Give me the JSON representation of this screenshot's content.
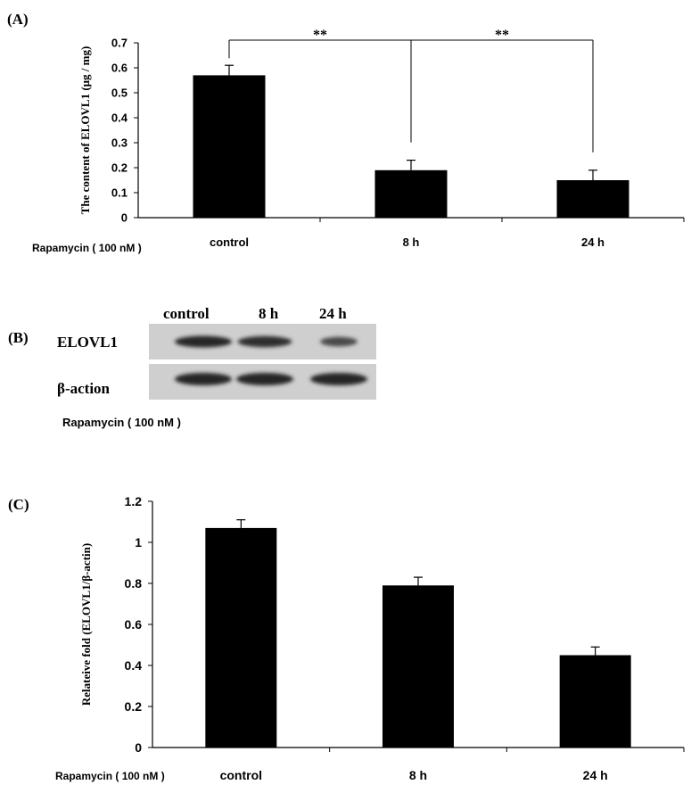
{
  "panel_labels": {
    "a": "(A)",
    "b": "(B)",
    "c": "(C)"
  },
  "treatment_label": "Rapamycin ( 100 nM )",
  "treatment_label_blot": "Rapamycin ( 100 nM )",
  "blot": {
    "lanes": [
      "control",
      "8 h",
      "24 h"
    ],
    "rows": [
      "ELOVL1",
      "β-action"
    ],
    "elovl1_intensity": [
      1.0,
      0.9,
      0.55
    ],
    "actin_intensity": [
      1.0,
      1.0,
      1.0
    ]
  },
  "chart_data": [
    {
      "type": "bar",
      "categories": [
        "control",
        "8 h",
        "24 h"
      ],
      "values": [
        0.57,
        0.19,
        0.15
      ],
      "errors": [
        0.04,
        0.04,
        0.04
      ],
      "ylabel": "The content of ELOVL1 (μg / mg)",
      "ylim": [
        0,
        0.7
      ],
      "yticks": [
        "0",
        "0.1",
        "0.2",
        "0.3",
        "0.4",
        "0.5",
        "0.6",
        "0.7"
      ],
      "significance": [
        {
          "from": "control",
          "to": "8 h",
          "label": "**"
        },
        {
          "from": "8 h",
          "to": "24 h",
          "label": "**"
        }
      ]
    },
    {
      "type": "bar",
      "categories": [
        "control",
        "8 h",
        "24 h"
      ],
      "values": [
        1.07,
        0.79,
        0.45
      ],
      "errors": [
        0.04,
        0.04,
        0.04
      ],
      "ylabel": "Relateive fold (ELOVL1/β-actin)",
      "ylim": [
        0,
        1.2
      ],
      "yticks": [
        "0",
        "0.2",
        "0.4",
        "0.6",
        "0.8",
        "1",
        "1.2"
      ]
    }
  ]
}
